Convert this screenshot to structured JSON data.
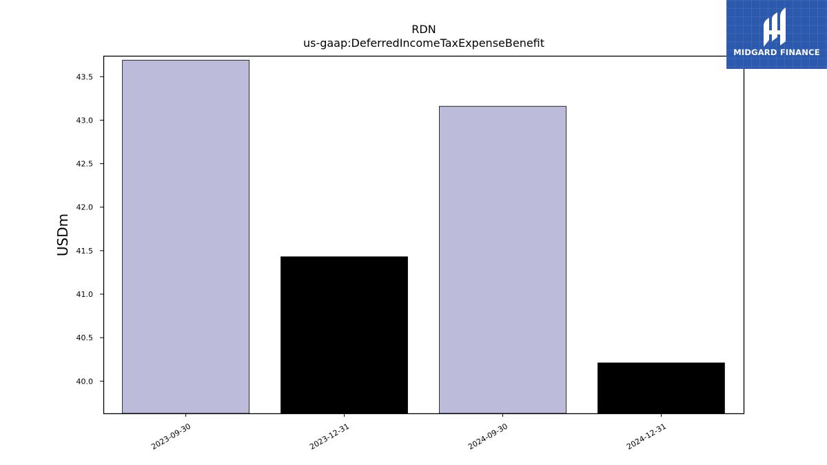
{
  "chart_data": {
    "type": "bar",
    "title": "RDN",
    "subtitle": "us-gaap:DeferredIncomeTaxExpenseBenefit",
    "xlabel": "",
    "ylabel": "USDm",
    "categories": [
      "2023-09-30",
      "2023-12-31",
      "2024-09-30",
      "2024-12-31"
    ],
    "values": [
      43.69,
      41.43,
      43.16,
      40.21
    ],
    "bar_colors": [
      "#bdbbda",
      "#000000",
      "#bdbbda",
      "#000000"
    ],
    "ylim": [
      39.63,
      43.74
    ],
    "yticks": [
      40.0,
      40.5,
      41.0,
      41.5,
      42.0,
      42.5,
      43.0,
      43.5
    ],
    "ytick_labels": [
      "40.0",
      "40.5",
      "41.0",
      "41.5",
      "42.0",
      "42.5",
      "43.0",
      "43.5"
    ],
    "grid": false,
    "legend": "none"
  },
  "logo": {
    "text": "MIDGARD FINANCE",
    "background": "#2b59ad",
    "icon": "midgard-logo-icon"
  }
}
